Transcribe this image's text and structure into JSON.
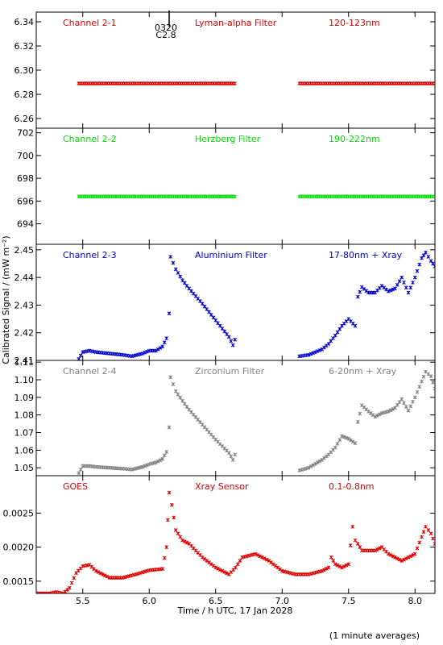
{
  "xlabel": "Time / h UTC, 17 Jan 2028",
  "ylabel": "Calibrated Signal / (mW m⁻²)",
  "footnote": "(1 minute averages)",
  "xticks": [
    "5.5",
    "6.0",
    "6.5",
    "7.0",
    "7.5",
    "8.0"
  ],
  "event_marker": {
    "x": 6.15,
    "line1": "0320",
    "line2": "C2.8"
  },
  "chart_data": [
    {
      "type": "scatter",
      "color": "#dd0000",
      "labels": [
        "Channel 2-1",
        "Lyman-alpha Filter",
        "120-123nm"
      ],
      "xlim": [
        5.15,
        8.15
      ],
      "ylim": [
        6.252,
        6.348
      ],
      "yticks": [
        "6.26",
        "6.28",
        "6.30",
        "6.32",
        "6.34"
      ],
      "ytick_values": [
        6.26,
        6.28,
        6.3,
        6.32,
        6.34
      ],
      "x": [
        5.47,
        5.7,
        5.9,
        6.1,
        6.3,
        6.5,
        6.66,
        null,
        7.13,
        7.4,
        7.7,
        8.0,
        8.15
      ],
      "y": [
        6.289,
        6.289,
        6.289,
        6.289,
        6.289,
        6.289,
        6.289,
        null,
        6.289,
        6.289,
        6.289,
        6.289,
        6.289
      ]
    },
    {
      "type": "scatter",
      "color": "#00dd00",
      "labels": [
        "Channel 2-2",
        "Herzberg Filter",
        "190-222nm"
      ],
      "xlim": [
        5.15,
        8.15
      ],
      "ylim": [
        692.2,
        702.4
      ],
      "yticks": [
        "694",
        "696",
        "698",
        "700",
        "702"
      ],
      "ytick_values": [
        694,
        696,
        698,
        700,
        702
      ],
      "x": [
        5.47,
        5.7,
        5.9,
        6.1,
        6.3,
        6.5,
        6.66,
        null,
        7.13,
        7.4,
        7.7,
        8.0,
        8.15
      ],
      "y": [
        696.4,
        696.4,
        696.4,
        696.4,
        696.4,
        696.4,
        696.4,
        null,
        696.4,
        696.4,
        696.4,
        696.4,
        696.4
      ]
    },
    {
      "type": "scatter",
      "color": "#0000cc",
      "labels": [
        "Channel 2-3",
        "Aluminium Filter",
        "17-80nm + Xray"
      ],
      "xlim": [
        5.15,
        8.15
      ],
      "ylim": [
        2.41,
        2.452
      ],
      "yticks": [
        "2.41",
        "2.42",
        "2.43",
        "2.44",
        "2.45"
      ],
      "ytick_values": [
        2.41,
        2.42,
        2.43,
        2.44,
        2.45
      ],
      "x": [
        5.47,
        5.5,
        5.55,
        5.6,
        5.7,
        5.8,
        5.87,
        5.95,
        6.0,
        6.05,
        6.1,
        6.13,
        6.15,
        6.16,
        6.2,
        6.25,
        6.3,
        6.4,
        6.5,
        6.6,
        6.63,
        6.66,
        null,
        7.13,
        7.2,
        7.3,
        7.35,
        7.4,
        7.45,
        7.5,
        7.55,
        7.57,
        7.6,
        7.65,
        7.7,
        7.75,
        7.8,
        7.85,
        7.9,
        7.95,
        8.0,
        8.05,
        8.08,
        8.12,
        8.15
      ],
      "y": [
        2.4105,
        2.413,
        2.4135,
        2.413,
        2.4125,
        2.412,
        2.4115,
        2.4125,
        2.4135,
        2.4135,
        2.415,
        2.418,
        2.427,
        2.4475,
        2.443,
        2.439,
        2.436,
        2.4305,
        2.4245,
        2.4185,
        2.4155,
        2.4195,
        null,
        2.4115,
        2.412,
        2.414,
        2.416,
        2.419,
        2.4225,
        2.425,
        2.4225,
        2.433,
        2.4365,
        2.4345,
        2.4345,
        2.437,
        2.435,
        2.436,
        2.44,
        2.4345,
        2.44,
        2.447,
        2.449,
        2.446,
        2.444
      ]
    },
    {
      "type": "scatter",
      "color": "#808080",
      "labels": [
        "Channel 2-4",
        "Zirconium Filter",
        "6-20nm + Xray"
      ],
      "xlim": [
        5.15,
        8.15
      ],
      "ylim": [
        1.0455,
        1.111
      ],
      "yticks": [
        "1.05",
        "1.06",
        "1.07",
        "1.08",
        "1.09",
        "1.10",
        "1.11"
      ],
      "ytick_values": [
        1.05,
        1.06,
        1.07,
        1.08,
        1.09,
        1.1,
        1.11
      ],
      "x": [
        5.47,
        5.5,
        5.55,
        5.6,
        5.7,
        5.8,
        5.87,
        5.95,
        6.0,
        6.05,
        6.1,
        6.13,
        6.15,
        6.16,
        6.2,
        6.25,
        6.3,
        6.4,
        6.5,
        6.6,
        6.63,
        6.66,
        null,
        7.13,
        7.2,
        7.3,
        7.35,
        7.4,
        7.45,
        7.5,
        7.55,
        7.57,
        7.6,
        7.65,
        7.7,
        7.75,
        7.8,
        7.85,
        7.9,
        7.95,
        8.0,
        8.05,
        8.08,
        8.12,
        8.15
      ],
      "y": [
        1.047,
        1.051,
        1.051,
        1.0505,
        1.05,
        1.0495,
        1.049,
        1.0505,
        1.052,
        1.053,
        1.055,
        1.059,
        1.073,
        1.1015,
        1.0935,
        1.088,
        1.083,
        1.0745,
        1.066,
        1.0585,
        1.0545,
        1.0605,
        null,
        1.0485,
        1.05,
        1.0545,
        1.0575,
        1.0615,
        1.068,
        1.0665,
        1.064,
        1.076,
        1.0855,
        1.082,
        1.079,
        1.081,
        1.082,
        1.084,
        1.089,
        1.0825,
        1.09,
        1.099,
        1.1045,
        1.102,
        1.095
      ]
    },
    {
      "type": "scatter",
      "color": "#dd0000",
      "labels": [
        "GOES",
        "Xray Sensor",
        "0.1-0.8nm"
      ],
      "xlim": [
        5.15,
        8.15
      ],
      "ylim": [
        0.00132,
        0.00305
      ],
      "yticks": [
        "0.0015",
        "0.0020",
        "0.0025"
      ],
      "ytick_values": [
        0.0015,
        0.002,
        0.0025
      ],
      "x": [
        5.15,
        5.25,
        5.3,
        5.35,
        5.4,
        5.45,
        5.5,
        5.55,
        5.6,
        5.7,
        5.8,
        5.9,
        6.0,
        6.1,
        6.13,
        6.14,
        6.15,
        6.17,
        6.2,
        6.25,
        6.3,
        6.4,
        6.5,
        6.6,
        6.65,
        6.7,
        6.8,
        6.9,
        7.0,
        7.1,
        7.2,
        7.3,
        7.35,
        7.37,
        7.4,
        7.45,
        7.5,
        7.53,
        7.55,
        7.57,
        7.6,
        7.7,
        7.75,
        7.8,
        7.9,
        8.0,
        8.05,
        8.08,
        8.12,
        8.15
      ],
      "y": [
        0.00132,
        0.00132,
        0.00134,
        0.00132,
        0.0014,
        0.00162,
        0.00172,
        0.00174,
        0.00165,
        0.00155,
        0.00155,
        0.0016,
        0.00166,
        0.00168,
        0.002,
        0.0024,
        0.0028,
        0.00262,
        0.00225,
        0.0021,
        0.00205,
        0.00185,
        0.0017,
        0.0016,
        0.0017,
        0.00185,
        0.0019,
        0.0018,
        0.00165,
        0.0016,
        0.0016,
        0.00165,
        0.0017,
        0.00185,
        0.00175,
        0.0017,
        0.00175,
        0.0023,
        0.0021,
        0.00205,
        0.00195,
        0.00195,
        0.002,
        0.0019,
        0.0018,
        0.0019,
        0.00215,
        0.0023,
        0.0022,
        0.00205
      ]
    }
  ]
}
